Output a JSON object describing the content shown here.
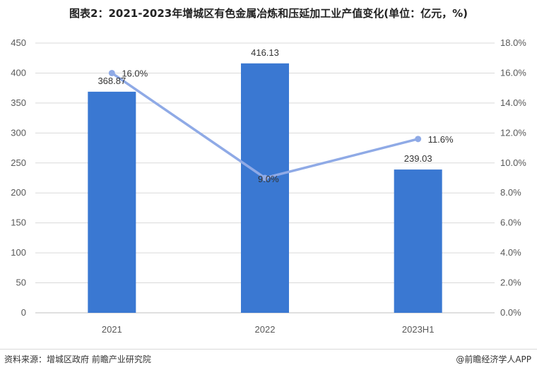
{
  "title": "图表2：2021-2023年增城区有色金属冶炼和压延加工业产值变化(单位：亿元，%)",
  "source": "资料来源：增城区政府 前瞻产业研究院",
  "brand": "@前瞻经济学人APP",
  "colors": {
    "bar": "#3a78d2",
    "line": "#8faae6",
    "grid": "#d9d9d9"
  },
  "chart_data": {
    "type": "bar",
    "categories": [
      "2021",
      "2022",
      "2023H1"
    ],
    "series": [
      {
        "type": "bar",
        "axis": "left",
        "values": [
          368.87,
          416.13,
          239.03
        ],
        "labels": [
          "368.87",
          "416.13",
          "239.03"
        ]
      },
      {
        "type": "line",
        "axis": "right",
        "values": [
          16.0,
          9.0,
          11.6
        ],
        "labels": [
          "16.0%",
          "9.0%",
          "11.6%"
        ]
      }
    ],
    "ylim_left": [
      0,
      450
    ],
    "yticks_left": [
      "0",
      "50",
      "100",
      "150",
      "200",
      "250",
      "300",
      "350",
      "400",
      "450"
    ],
    "ylim_right": [
      0,
      18
    ],
    "yticks_right": [
      "0.0%",
      "2.0%",
      "4.0%",
      "6.0%",
      "8.0%",
      "10.0%",
      "12.0%",
      "14.0%",
      "16.0%",
      "18.0%"
    ],
    "grid": true
  }
}
